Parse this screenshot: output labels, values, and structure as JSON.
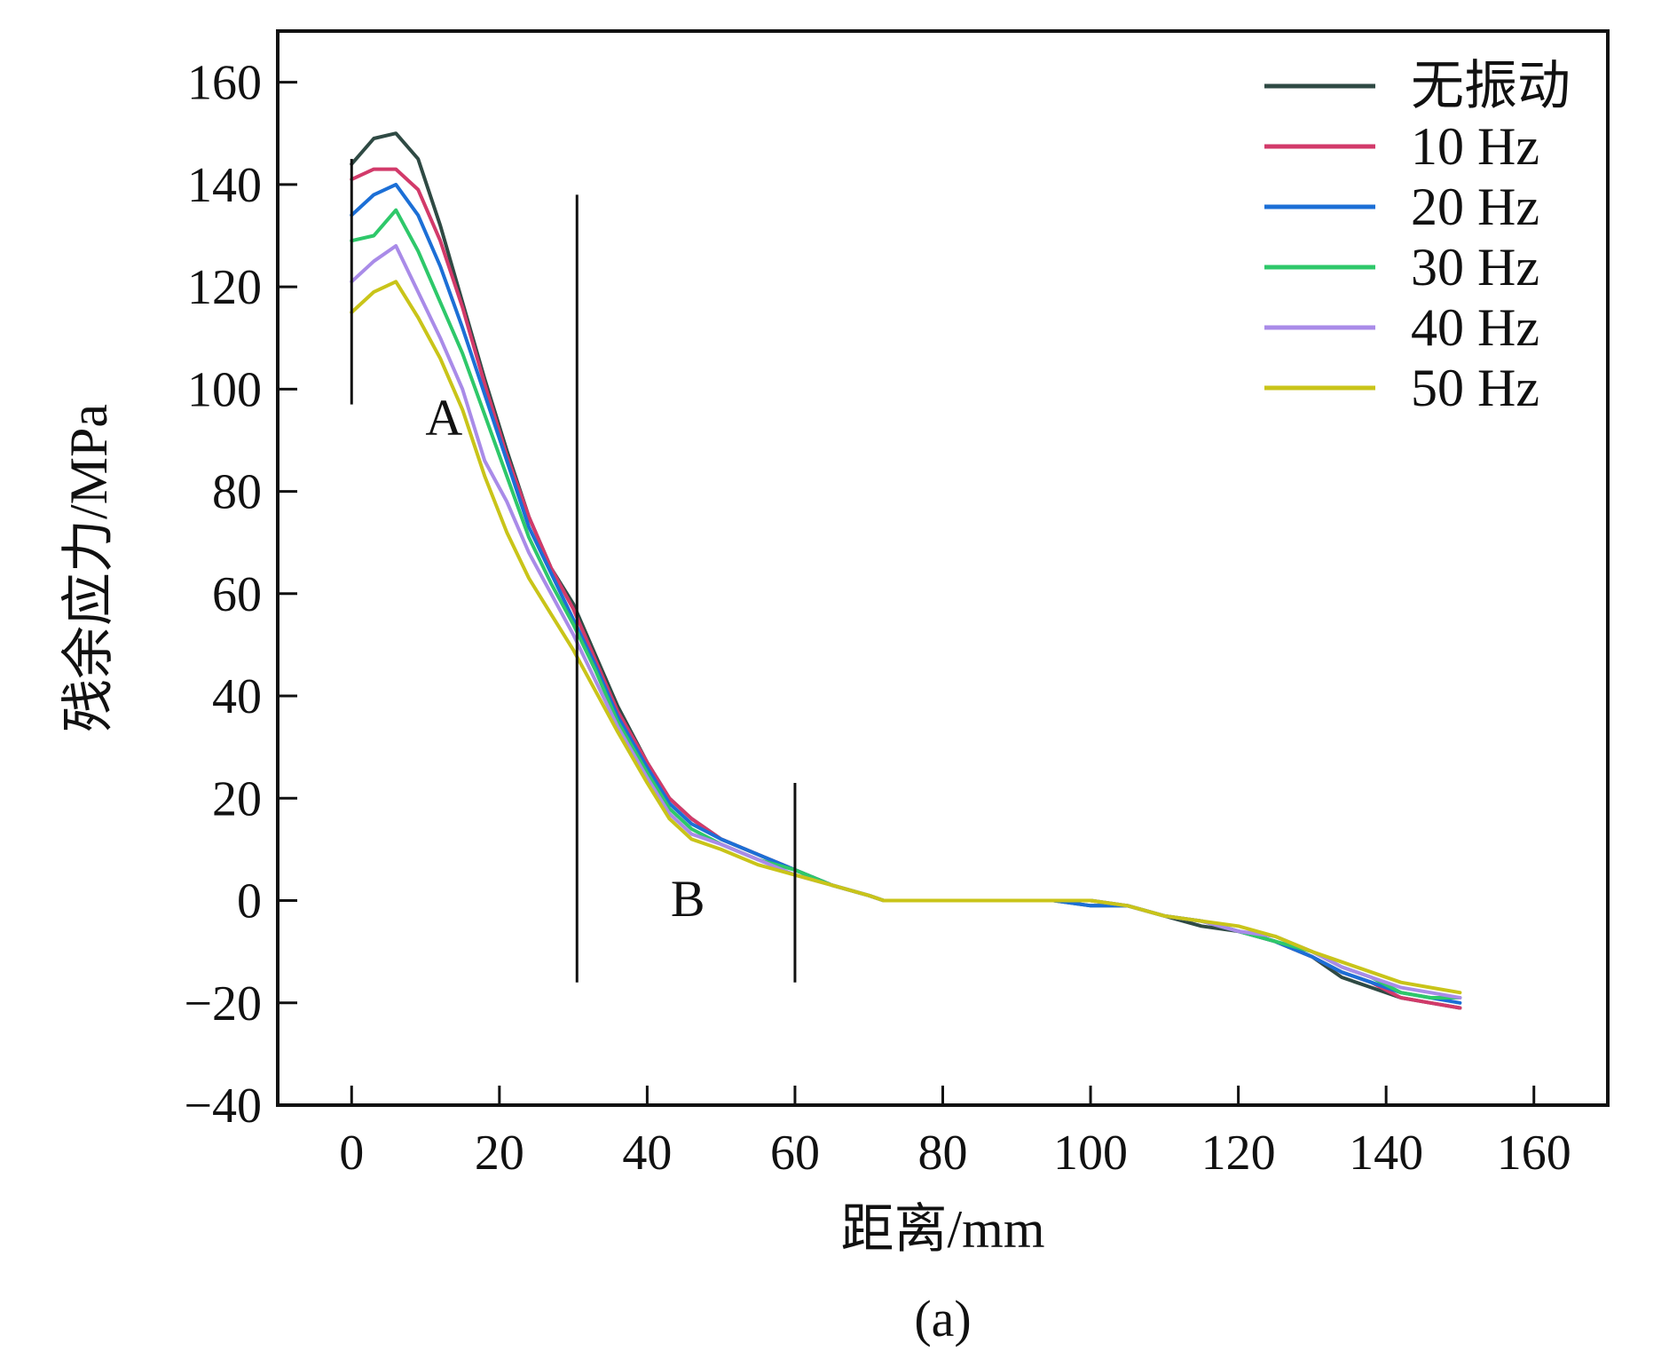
{
  "chart_data": {
    "type": "line",
    "caption": "(a)",
    "xlabel": "距离/mm",
    "ylabel": "残余应力/MPa",
    "xlim": [
      -10,
      170
    ],
    "ylim": [
      -40,
      170
    ],
    "xticks": [
      0,
      20,
      40,
      60,
      80,
      100,
      120,
      140,
      160
    ],
    "yticks": [
      -40,
      -20,
      0,
      20,
      40,
      60,
      80,
      100,
      120,
      140,
      160
    ],
    "xtick_labels": [
      "0",
      "20",
      "40",
      "60",
      "80",
      "100",
      "120",
      "140",
      "160"
    ],
    "ytick_labels": [
      "−40",
      "−20",
      "0",
      "20",
      "40",
      "60",
      "80",
      "100",
      "120",
      "140",
      "160"
    ],
    "legend_position": "top-right",
    "grid": false,
    "x": [
      0,
      3,
      6,
      9,
      12,
      15,
      18,
      21,
      24,
      27,
      30,
      33,
      36,
      40,
      43,
      46,
      50,
      55,
      60,
      65,
      70,
      72,
      80,
      90,
      95,
      100,
      105,
      110,
      115,
      120,
      125,
      130,
      134,
      138,
      142,
      146,
      150
    ],
    "series": [
      {
        "name": "无振动",
        "color": "#2f4a44",
        "values": [
          144,
          149,
          150,
          145,
          132,
          117,
          102,
          88,
          75,
          65,
          58,
          48,
          38,
          27,
          20,
          16,
          12,
          9,
          6,
          3,
          1,
          0,
          0,
          0,
          0,
          -1,
          -1,
          -3,
          -5,
          -6,
          -8,
          -11,
          -15,
          -17,
          -19,
          -20,
          -21
        ]
      },
      {
        "name": "10 Hz",
        "color": "#d23a6a",
        "values": [
          141,
          143,
          143,
          139,
          129,
          116,
          101,
          87,
          75,
          65,
          57,
          47,
          37,
          27,
          20,
          16,
          12,
          9,
          6,
          3,
          1,
          0,
          0,
          0,
          0,
          0,
          -1,
          -3,
          -4,
          -6,
          -8,
          -11,
          -14,
          -16,
          -19,
          -20,
          -21
        ]
      },
      {
        "name": "20 Hz",
        "color": "#1c6fd6",
        "values": [
          134,
          138,
          140,
          134,
          124,
          112,
          99,
          86,
          73,
          64,
          55,
          46,
          36,
          26,
          19,
          15,
          12,
          9,
          6,
          3,
          1,
          0,
          0,
          0,
          0,
          -1,
          -1,
          -3,
          -4,
          -6,
          -8,
          -11,
          -14,
          -16,
          -18,
          -19,
          -20
        ]
      },
      {
        "name": "30 Hz",
        "color": "#2ec86a",
        "values": [
          129,
          130,
          135,
          127,
          117,
          107,
          95,
          83,
          71,
          62,
          54,
          45,
          35,
          25,
          18,
          14,
          11,
          8,
          6,
          3,
          1,
          0,
          0,
          0,
          0,
          0,
          -1,
          -3,
          -4,
          -6,
          -8,
          -10,
          -13,
          -15,
          -18,
          -19,
          -19
        ]
      },
      {
        "name": "40 Hz",
        "color": "#a98be8",
        "values": [
          121,
          125,
          128,
          119,
          110,
          100,
          86,
          78,
          68,
          60,
          52,
          43,
          34,
          24,
          17,
          13,
          11,
          8,
          5,
          3,
          1,
          0,
          0,
          0,
          0,
          0,
          -1,
          -3,
          -4,
          -6,
          -7,
          -10,
          -13,
          -15,
          -17,
          -18,
          -19
        ]
      },
      {
        "name": "50 Hz",
        "color": "#c9c419",
        "values": [
          115,
          119,
          121,
          114,
          106,
          96,
          83,
          72,
          63,
          56,
          49,
          41,
          33,
          23,
          16,
          12,
          10,
          7,
          5,
          3,
          1,
          0,
          0,
          0,
          0,
          0,
          -1,
          -3,
          -4,
          -5,
          -7,
          -10,
          -12,
          -14,
          -16,
          -17,
          -18
        ]
      }
    ],
    "annotations": [
      {
        "text": "A",
        "x": 12.5,
        "y": 91
      },
      {
        "text": "B",
        "x": 45.5,
        "y": -3
      }
    ],
    "vlines": [
      {
        "x": 0,
        "y0": 97,
        "y1": 145
      },
      {
        "x": 30.5,
        "y0": -16,
        "y1": 138
      },
      {
        "x": 60,
        "y0": -16,
        "y1": 23
      }
    ]
  }
}
